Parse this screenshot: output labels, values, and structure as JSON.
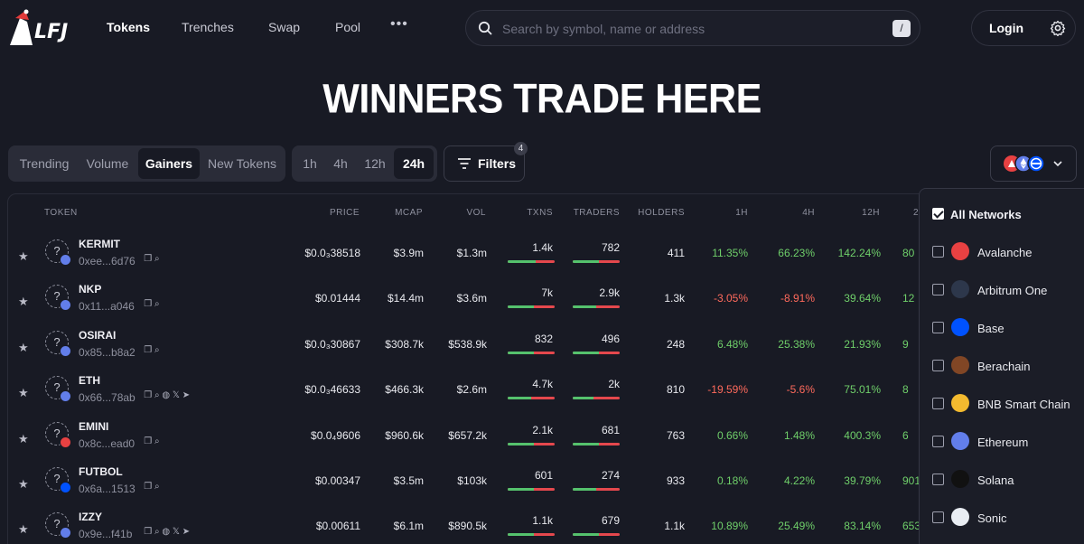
{
  "header": {
    "logo_text": "LFJ",
    "nav": [
      "Tokens",
      "Trenches",
      "Swap",
      "Pool"
    ],
    "more_label": "•••",
    "search_placeholder": "Search by symbol, name or address",
    "search_shortcut": "/",
    "login_label": "Login"
  },
  "hero_title": "WINNERS TRADE HERE",
  "sort_tabs": [
    "Trending",
    "Volume",
    "Gainers",
    "New Tokens"
  ],
  "sort_active": "Gainers",
  "time_tabs": [
    "1h",
    "4h",
    "12h",
    "24h"
  ],
  "time_active": "24h",
  "filters": {
    "label": "Filters",
    "count": "4"
  },
  "columns": [
    "TOKEN",
    "PRICE",
    "MCAP",
    "VOL",
    "TXNS",
    "TRADERS",
    "HOLDERS",
    "1H",
    "4H",
    "12H",
    "2"
  ],
  "rows": [
    {
      "symbol": "KERMIT",
      "address": "0xee...6d76",
      "price": "$0.0₃38518",
      "mcap": "$3.9m",
      "vol": "$1.3m",
      "txns": "1.4k",
      "traders": "782",
      "holders": "411",
      "h1": "11.35%",
      "h4": "66.23%",
      "h12": "142.24%",
      "h24": "80",
      "chain": "ethereum",
      "buy_share_txns": 0.6,
      "buy_share_traders": 0.55
    },
    {
      "symbol": "NKP",
      "address": "0x11...a046",
      "price": "$0.01444",
      "mcap": "$14.4m",
      "vol": "$3.6m",
      "txns": "7k",
      "traders": "2.9k",
      "holders": "1.3k",
      "h1": "-3.05%",
      "h4": "-8.91%",
      "h12": "39.64%",
      "h24": "12",
      "chain": "ethereum",
      "buy_share_txns": 0.55,
      "buy_share_traders": 0.5
    },
    {
      "symbol": "OSIRAI",
      "address": "0x85...b8a2",
      "price": "$0.0₃30867",
      "mcap": "$308.7k",
      "vol": "$538.9k",
      "txns": "832",
      "traders": "496",
      "holders": "248",
      "h1": "6.48%",
      "h4": "25.38%",
      "h12": "21.93%",
      "h24": "9",
      "chain": "ethereum",
      "buy_share_txns": 0.55,
      "buy_share_traders": 0.55
    },
    {
      "symbol": "ETH",
      "address": "0x66...78ab",
      "price": "$0.0₃46633",
      "mcap": "$466.3k",
      "vol": "$2.6m",
      "txns": "4.7k",
      "traders": "2k",
      "holders": "810",
      "h1": "-19.59%",
      "h4": "-5.6%",
      "h12": "75.01%",
      "h24": "8",
      "chain": "ethereum",
      "buy_share_txns": 0.5,
      "buy_share_traders": 0.45
    },
    {
      "symbol": "EMINI",
      "address": "0x8c...ead0",
      "price": "$0.0₄9606",
      "mcap": "$960.6k",
      "vol": "$657.2k",
      "txns": "2.1k",
      "traders": "681",
      "holders": "763",
      "h1": "0.66%",
      "h4": "1.48%",
      "h12": "400.3%",
      "h24": "6",
      "chain": "avalanche",
      "buy_share_txns": 0.55,
      "buy_share_traders": 0.55
    },
    {
      "symbol": "FUTBOL",
      "address": "0x6a...1513",
      "price": "$0.00347",
      "mcap": "$3.5m",
      "vol": "$103k",
      "txns": "601",
      "traders": "274",
      "holders": "933",
      "h1": "0.18%",
      "h4": "4.22%",
      "h12": "39.79%",
      "h24": "901",
      "chain": "base",
      "buy_share_txns": 0.55,
      "buy_share_traders": 0.5
    },
    {
      "symbol": "IZZY",
      "address": "0x9e...f41b",
      "price": "$0.00611",
      "mcap": "$6.1m",
      "vol": "$890.5k",
      "txns": "1.1k",
      "traders": "679",
      "holders": "1.1k",
      "h1": "10.89%",
      "h4": "25.49%",
      "h12": "83.14%",
      "h24": "653",
      "chain": "ethereum",
      "buy_share_txns": 0.55,
      "buy_share_traders": 0.55
    }
  ],
  "networks": {
    "all_label": "All Networks",
    "items": [
      {
        "name": "Avalanche",
        "color": "#e84142"
      },
      {
        "name": "Arbitrum One",
        "color": "#2d374b"
      },
      {
        "name": "Base",
        "color": "#0052ff"
      },
      {
        "name": "Berachain",
        "color": "#814625"
      },
      {
        "name": "BNB Smart Chain",
        "color": "#f3ba2f"
      },
      {
        "name": "Ethereum",
        "color": "#627eea"
      },
      {
        "name": "Solana",
        "color": "#111111"
      },
      {
        "name": "Sonic",
        "color": "#e9edf3"
      }
    ]
  },
  "colors": {
    "background": "#181a24",
    "positive": "#6fcf6a",
    "negative": "#ff6a5c",
    "buy": "#55c26d",
    "sell": "#e5484d"
  }
}
